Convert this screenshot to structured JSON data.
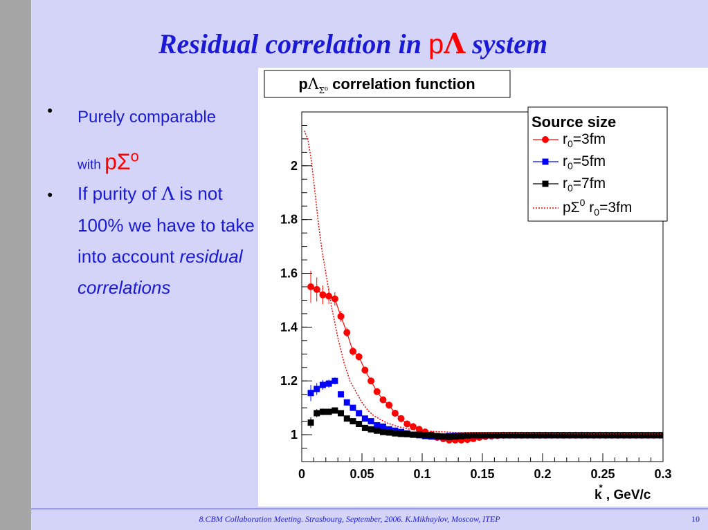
{
  "slide": {
    "title_part1": "Residual correlation in ",
    "title_p": "p",
    "title_lambda": "Λ",
    "title_part2": " system",
    "bullet1_line1": "Purely comparable",
    "bullet1_with": "with ",
    "bullet1_psigma": "pΣ",
    "bullet1_sup": "o",
    "bullet2_part1": "If purity of ",
    "bullet2_lambda": "Λ",
    "bullet2_part2": " is not 100% we have to take into account ",
    "bullet2_italic": "residual correlations",
    "footer": "8.CBM Collaboration Meeting. Strasbourg, September, 2006. K.Mikhaylov, Moscow, ITEP",
    "page_number": "10",
    "bullet_glyph": "●"
  },
  "chart_data": {
    "type": "scatter",
    "title_main": "p",
    "title_lambda": "Λ",
    "title_sub": "Σ⁰",
    "title_rest": " correlation function",
    "xlabel_k": "k",
    "xlabel_star": "*",
    "xlabel_rest": " , GeV/c",
    "xlim": [
      0,
      0.3
    ],
    "ylim": [
      0.9,
      2.2
    ],
    "xticks": [
      0,
      0.05,
      0.1,
      0.15,
      0.2,
      0.25,
      0.3
    ],
    "xtick_labels": [
      "0",
      "0.05",
      "0.1",
      "0.15",
      "0.2",
      "0.25",
      "0.3"
    ],
    "yticks": [
      1,
      1.2,
      1.4,
      1.6,
      1.8,
      2
    ],
    "ytick_labels": [
      "1",
      "1.2",
      "1.4",
      "1.6",
      "1.8",
      "2"
    ],
    "legend": {
      "title": "Source size",
      "position": "top-right",
      "entries": [
        {
          "prefix": "r",
          "sub": "0",
          "suffix": "=3fm"
        },
        {
          "prefix": "r",
          "sub": "0",
          "suffix": "=5fm"
        },
        {
          "prefix": "r",
          "sub": "0",
          "suffix": "=7fm"
        },
        {
          "prefix": "pΣ",
          "sup": "0",
          "mid": " r",
          "sub": "0",
          "suffix": "=3fm"
        }
      ]
    },
    "series": [
      {
        "color": "#ff0000",
        "marker": "circle",
        "x": [
          0.0075,
          0.0125,
          0.0175,
          0.0225,
          0.0275,
          0.0325,
          0.0375,
          0.0425,
          0.0475,
          0.0525,
          0.0575,
          0.0625,
          0.0675,
          0.0725,
          0.0775,
          0.0825,
          0.0875,
          0.0925,
          0.0975,
          0.1025,
          0.1075,
          0.1125,
          0.1175,
          0.1225,
          0.1275,
          0.1325,
          0.1375,
          0.1425,
          0.1475,
          0.1525,
          0.1575,
          0.1625,
          0.1675,
          0.1725,
          0.1775,
          0.1825,
          0.1875,
          0.1925,
          0.1975,
          0.2025,
          0.2075,
          0.2125,
          0.2175,
          0.2225,
          0.2275,
          0.2325,
          0.2375,
          0.2425,
          0.2475,
          0.2525,
          0.2575,
          0.2625,
          0.2675,
          0.2725,
          0.2775,
          0.2825,
          0.2875,
          0.2925,
          0.2975
        ],
        "y": [
          1.55,
          1.54,
          1.52,
          1.515,
          1.505,
          1.44,
          1.38,
          1.31,
          1.29,
          1.24,
          1.2,
          1.16,
          1.13,
          1.11,
          1.08,
          1.06,
          1.04,
          1.03,
          1.02,
          1.01,
          1.0,
          0.99,
          0.985,
          0.98,
          0.98,
          0.98,
          0.982,
          0.985,
          0.99,
          0.993,
          0.995,
          0.997,
          0.998,
          0.998,
          0.998,
          0.998,
          0.998,
          0.998,
          0.998,
          0.998,
          0.998,
          0.998,
          0.998,
          0.998,
          0.998,
          0.998,
          0.998,
          0.998,
          0.998,
          0.998,
          0.998,
          0.998,
          0.998,
          0.998,
          0.998,
          0.998,
          0.998,
          0.998,
          0.998
        ],
        "err": [
          0.06,
          0.045,
          0.035,
          0.03,
          0.025,
          0.02,
          0.018,
          0.016,
          0.014,
          0.013,
          0.012,
          0.011,
          0.01,
          0.01,
          0.009,
          0.009,
          0.008,
          0.008,
          0.008,
          0.007,
          0.007,
          0.007,
          0.006,
          0.006,
          0.006,
          0.006,
          0.006,
          0.006,
          0.005,
          0.005,
          0.005,
          0.005,
          0.005,
          0.005,
          0.005,
          0.005,
          0.005,
          0.005,
          0.005,
          0.005,
          0.005,
          0.005,
          0.005,
          0.005,
          0.005,
          0.005,
          0.005,
          0.005,
          0.005,
          0.005,
          0.005,
          0.005,
          0.005,
          0.005,
          0.005,
          0.005,
          0.005,
          0.005,
          0.005
        ]
      },
      {
        "color": "#0000ff",
        "marker": "square",
        "x": [
          0.0075,
          0.0125,
          0.0175,
          0.0225,
          0.0275,
          0.0325,
          0.0375,
          0.0425,
          0.0475,
          0.0525,
          0.0575,
          0.0625,
          0.0675,
          0.0725,
          0.0775,
          0.0825,
          0.0875,
          0.0925,
          0.0975,
          0.1025,
          0.1075,
          0.1125,
          0.1175,
          0.1225,
          0.1275,
          0.1325,
          0.1375,
          0.1425,
          0.1475,
          0.1525,
          0.1575,
          0.1625,
          0.1675,
          0.1725,
          0.1775,
          0.1825,
          0.1875,
          0.1925,
          0.1975,
          0.2025,
          0.2075,
          0.2125,
          0.2175,
          0.2225,
          0.2275,
          0.2325,
          0.2375,
          0.2425,
          0.2475,
          0.2525,
          0.2575,
          0.2625,
          0.2675,
          0.2725,
          0.2775,
          0.2825,
          0.2875,
          0.2925,
          0.2975
        ],
        "y": [
          1.155,
          1.17,
          1.185,
          1.19,
          1.2,
          1.15,
          1.12,
          1.1,
          1.08,
          1.06,
          1.05,
          1.035,
          1.03,
          1.02,
          1.015,
          1.01,
          1.005,
          1.0,
          0.998,
          0.995,
          0.993,
          0.993,
          0.993,
          0.995,
          0.996,
          0.997,
          0.998,
          0.998,
          0.998,
          0.998,
          0.998,
          0.998,
          0.998,
          0.998,
          0.998,
          0.998,
          0.998,
          0.998,
          0.998,
          0.998,
          0.998,
          0.998,
          0.998,
          0.998,
          0.998,
          0.998,
          0.998,
          0.998,
          0.998,
          0.998,
          0.998,
          0.998,
          0.998,
          0.998,
          0.998,
          0.998,
          0.998,
          0.998,
          0.998
        ],
        "err": [
          0.03,
          0.022,
          0.018,
          0.015,
          0.013,
          0.011,
          0.01,
          0.009,
          0.008,
          0.008,
          0.007,
          0.007,
          0.006,
          0.006,
          0.006,
          0.005,
          0.005,
          0.005,
          0.005,
          0.005,
          0.004,
          0.004,
          0.004,
          0.004,
          0.004,
          0.004,
          0.004,
          0.004,
          0.004,
          0.004,
          0.004,
          0.004,
          0.004,
          0.004,
          0.004,
          0.004,
          0.004,
          0.004,
          0.004,
          0.004,
          0.004,
          0.004,
          0.004,
          0.004,
          0.004,
          0.004,
          0.004,
          0.004,
          0.004,
          0.004,
          0.004,
          0.004,
          0.004,
          0.004,
          0.004,
          0.004,
          0.004,
          0.004,
          0.004
        ]
      },
      {
        "color": "#000000",
        "marker": "square",
        "x": [
          0.0075,
          0.0125,
          0.0175,
          0.0225,
          0.0275,
          0.0325,
          0.0375,
          0.0425,
          0.0475,
          0.0525,
          0.0575,
          0.0625,
          0.0675,
          0.0725,
          0.0775,
          0.0825,
          0.0875,
          0.0925,
          0.0975,
          0.1025,
          0.1075,
          0.1125,
          0.1175,
          0.1225,
          0.1275,
          0.1325,
          0.1375,
          0.1425,
          0.1475,
          0.1525,
          0.1575,
          0.1625,
          0.1675,
          0.1725,
          0.1775,
          0.1825,
          0.1875,
          0.1925,
          0.1975,
          0.2025,
          0.2075,
          0.2125,
          0.2175,
          0.2225,
          0.2275,
          0.2325,
          0.2375,
          0.2425,
          0.2475,
          0.2525,
          0.2575,
          0.2625,
          0.2675,
          0.2725,
          0.2775,
          0.2825,
          0.2875,
          0.2925,
          0.2975
        ],
        "y": [
          1.045,
          1.08,
          1.085,
          1.085,
          1.09,
          1.08,
          1.06,
          1.05,
          1.04,
          1.025,
          1.02,
          1.015,
          1.01,
          1.008,
          1.005,
          1.003,
          1.002,
          1.0,
          1.0,
          0.998,
          0.998,
          0.995,
          0.993,
          0.992,
          0.993,
          0.995,
          0.997,
          0.998,
          0.998,
          0.998,
          0.998,
          0.998,
          0.998,
          0.998,
          0.998,
          0.998,
          0.998,
          0.998,
          0.998,
          0.998,
          0.998,
          0.998,
          0.998,
          0.998,
          0.998,
          0.998,
          0.998,
          0.998,
          0.998,
          0.998,
          0.998,
          0.998,
          0.998,
          0.998,
          0.998,
          0.998,
          0.998,
          0.998,
          0.998
        ],
        "err": [
          0.02,
          0.015,
          0.012,
          0.01,
          0.009,
          0.008,
          0.007,
          0.006,
          0.006,
          0.005,
          0.005,
          0.005,
          0.004,
          0.004,
          0.004,
          0.004,
          0.004,
          0.004,
          0.003,
          0.003,
          0.003,
          0.003,
          0.003,
          0.003,
          0.003,
          0.003,
          0.003,
          0.003,
          0.003,
          0.003,
          0.003,
          0.003,
          0.003,
          0.003,
          0.003,
          0.003,
          0.003,
          0.003,
          0.003,
          0.003,
          0.003,
          0.003,
          0.003,
          0.003,
          0.003,
          0.003,
          0.003,
          0.003,
          0.003,
          0.003,
          0.003,
          0.003,
          0.003,
          0.003,
          0.003,
          0.003,
          0.003,
          0.003,
          0.003
        ]
      },
      {
        "color": "#ff0000",
        "marker": "dotted-line",
        "x": [
          0.002,
          0.005,
          0.008,
          0.011,
          0.014,
          0.017,
          0.02,
          0.025,
          0.03,
          0.035,
          0.04,
          0.045,
          0.05,
          0.055,
          0.06,
          0.07,
          0.08,
          0.09,
          0.1,
          0.11,
          0.12,
          0.13,
          0.14,
          0.15,
          0.17,
          0.2,
          0.25,
          0.3
        ],
        "y": [
          2.13,
          2.1,
          2.02,
          1.9,
          1.78,
          1.68,
          1.6,
          1.47,
          1.36,
          1.27,
          1.2,
          1.16,
          1.12,
          1.09,
          1.07,
          1.045,
          1.03,
          1.02,
          1.015,
          1.012,
          1.01,
          1.008,
          1.007,
          1.006,
          1.005,
          1.004,
          1.003,
          1.003
        ]
      }
    ]
  }
}
